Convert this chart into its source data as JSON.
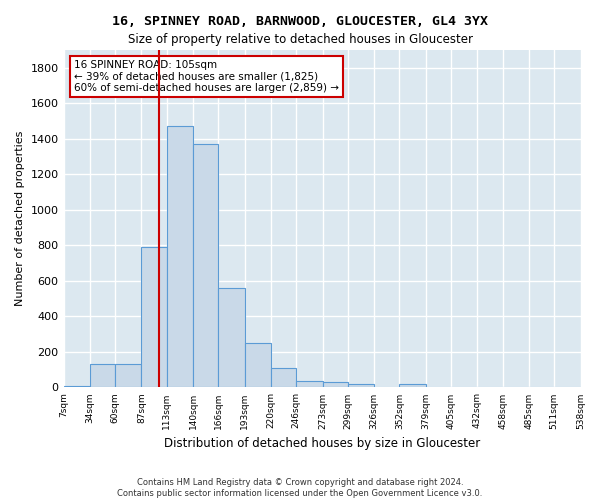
{
  "title1": "16, SPINNEY ROAD, BARNWOOD, GLOUCESTER, GL4 3YX",
  "title2": "Size of property relative to detached houses in Gloucester",
  "xlabel": "Distribution of detached houses by size in Gloucester",
  "ylabel": "Number of detached properties",
  "bar_values": [
    10,
    130,
    130,
    790,
    1470,
    1370,
    560,
    250,
    110,
    35,
    30,
    20,
    0,
    20,
    0,
    0,
    0,
    0,
    0,
    0
  ],
  "bin_edges": [
    7,
    34,
    60,
    87,
    113,
    140,
    166,
    193,
    220,
    246,
    273,
    299,
    326,
    352,
    379,
    405,
    432,
    458,
    485,
    511,
    538
  ],
  "bar_facecolor": "#c9d9e8",
  "bar_edgecolor": "#5b9bd5",
  "vline_x": 105,
  "vline_color": "#cc0000",
  "annotation_box_text": "16 SPINNEY ROAD: 105sqm\n← 39% of detached houses are smaller (1,825)\n60% of semi-detached houses are larger (2,859) →",
  "ylim": [
    0,
    1900
  ],
  "yticks": [
    0,
    200,
    400,
    600,
    800,
    1000,
    1200,
    1400,
    1600,
    1800
  ],
  "background_color": "#dce8f0",
  "grid_color": "#ffffff",
  "footer_text": "Contains HM Land Registry data © Crown copyright and database right 2024.\nContains public sector information licensed under the Open Government Licence v3.0.",
  "tick_labels": [
    "7sqm",
    "34sqm",
    "60sqm",
    "87sqm",
    "113sqm",
    "140sqm",
    "166sqm",
    "193sqm",
    "220sqm",
    "246sqm",
    "273sqm",
    "299sqm",
    "326sqm",
    "352sqm",
    "379sqm",
    "405sqm",
    "432sqm",
    "458sqm",
    "485sqm",
    "511sqm",
    "538sqm"
  ]
}
